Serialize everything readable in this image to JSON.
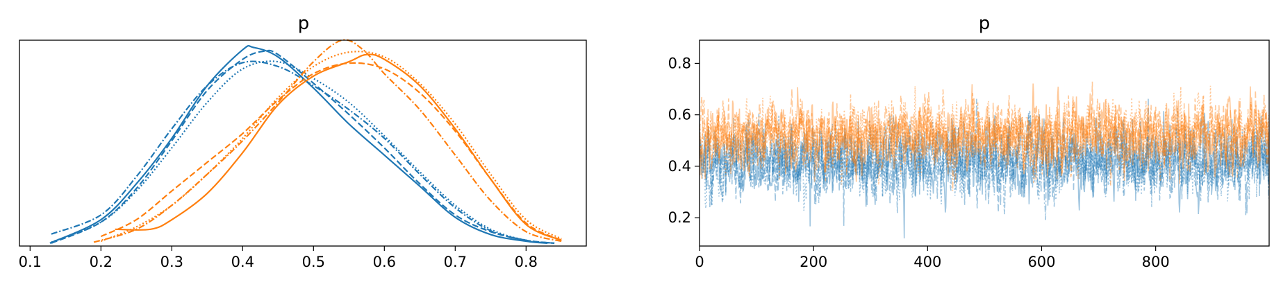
{
  "chart_data": [
    {
      "type": "line",
      "subtype": "kde",
      "title": "p",
      "xlabel": "",
      "ylabel": "",
      "xlim": [
        0.085,
        0.885
      ],
      "ylim": [
        0,
        4.3
      ],
      "x_ticks": [
        "0.1",
        "0.2",
        "0.3",
        "0.4",
        "0.5",
        "0.6",
        "0.7",
        "0.8"
      ],
      "y_ticks": [],
      "colors": {
        "blue": "#1f77b4",
        "orange": "#ff7f0e"
      },
      "series": [
        {
          "group": "blue",
          "style": "solid",
          "x": [
            0.128,
            0.2,
            0.25,
            0.3,
            0.35,
            0.4,
            0.415,
            0.45,
            0.5,
            0.55,
            0.6,
            0.65,
            0.7,
            0.75,
            0.8,
            0.83
          ],
          "y": [
            0.06,
            0.55,
            1.3,
            2.25,
            3.35,
            4.1,
            4.15,
            3.95,
            3.3,
            2.55,
            1.9,
            1.25,
            0.6,
            0.24,
            0.1,
            0.06
          ]
        },
        {
          "group": "blue",
          "style": "dashed",
          "x": [
            0.13,
            0.2,
            0.25,
            0.3,
            0.35,
            0.4,
            0.43,
            0.45,
            0.5,
            0.55,
            0.6,
            0.65,
            0.7,
            0.75,
            0.8,
            0.84
          ],
          "y": [
            0.06,
            0.5,
            1.2,
            2.2,
            3.25,
            3.9,
            4.07,
            4.0,
            3.4,
            2.75,
            2.05,
            1.3,
            0.65,
            0.3,
            0.12,
            0.06
          ]
        },
        {
          "group": "blue",
          "style": "dashdot",
          "x": [
            0.13,
            0.2,
            0.25,
            0.3,
            0.35,
            0.4,
            0.45,
            0.5,
            0.55,
            0.6,
            0.65,
            0.7,
            0.75,
            0.8,
            0.84
          ],
          "y": [
            0.25,
            0.65,
            1.45,
            2.45,
            3.35,
            3.83,
            3.75,
            3.35,
            2.85,
            2.25,
            1.5,
            0.8,
            0.32,
            0.12,
            0.06
          ]
        },
        {
          "group": "blue",
          "style": "dotted",
          "x": [
            0.13,
            0.2,
            0.25,
            0.3,
            0.35,
            0.4,
            0.45,
            0.5,
            0.55,
            0.6,
            0.65,
            0.7,
            0.75,
            0.8,
            0.84
          ],
          "y": [
            0.08,
            0.5,
            1.15,
            2.05,
            3.0,
            3.7,
            3.85,
            3.5,
            3.0,
            2.3,
            1.55,
            0.85,
            0.35,
            0.12,
            0.06
          ]
        },
        {
          "group": "orange",
          "style": "solid",
          "x": [
            0.22,
            0.27,
            0.3,
            0.35,
            0.4,
            0.45,
            0.5,
            0.55,
            0.575,
            0.6,
            0.65,
            0.7,
            0.75,
            0.8,
            0.85
          ],
          "y": [
            0.35,
            0.35,
            0.55,
            1.1,
            1.95,
            2.95,
            3.55,
            3.85,
            4.0,
            3.9,
            3.35,
            2.45,
            1.4,
            0.45,
            0.12
          ]
        },
        {
          "group": "orange",
          "style": "dashed",
          "x": [
            0.2,
            0.25,
            0.3,
            0.35,
            0.4,
            0.45,
            0.5,
            0.55,
            0.6,
            0.65,
            0.7,
            0.75,
            0.8,
            0.85
          ],
          "y": [
            0.2,
            0.55,
            1.15,
            1.75,
            2.35,
            3.05,
            3.6,
            3.82,
            3.7,
            3.2,
            2.4,
            1.4,
            0.48,
            0.12
          ]
        },
        {
          "group": "orange",
          "style": "dashdot",
          "x": [
            0.19,
            0.25,
            0.3,
            0.35,
            0.4,
            0.45,
            0.5,
            0.54,
            0.57,
            0.6,
            0.65,
            0.7,
            0.75,
            0.8,
            0.85
          ],
          "y": [
            0.08,
            0.35,
            0.85,
            1.5,
            2.2,
            3.0,
            3.85,
            4.3,
            4.1,
            3.6,
            2.85,
            1.9,
            0.95,
            0.3,
            0.1
          ]
        },
        {
          "group": "orange",
          "style": "dotted",
          "x": [
            0.2,
            0.25,
            0.3,
            0.35,
            0.4,
            0.45,
            0.5,
            0.55,
            0.6,
            0.65,
            0.7,
            0.75,
            0.8,
            0.85
          ],
          "y": [
            0.1,
            0.4,
            0.85,
            1.5,
            2.25,
            3.1,
            3.75,
            4.05,
            3.95,
            3.4,
            2.55,
            1.5,
            0.55,
            0.15
          ]
        }
      ]
    },
    {
      "type": "line",
      "subtype": "trace",
      "title": "p",
      "xlabel": "",
      "ylabel": "",
      "xlim": [
        0,
        999
      ],
      "ylim": [
        0.09,
        0.89
      ],
      "x_ticks": [
        "0",
        "200",
        "400",
        "600",
        "800"
      ],
      "y_ticks": [
        "0.2",
        "0.4",
        "0.6",
        "0.8"
      ],
      "draws": 1000,
      "chains_per_group": 4,
      "colors": {
        "blue": "#1f77b4",
        "orange": "#ff7f0e"
      },
      "series": [
        {
          "group": "blue",
          "mean": 0.42,
          "sd": 0.11
        },
        {
          "group": "orange",
          "mean": 0.52,
          "sd": 0.1
        }
      ]
    }
  ]
}
